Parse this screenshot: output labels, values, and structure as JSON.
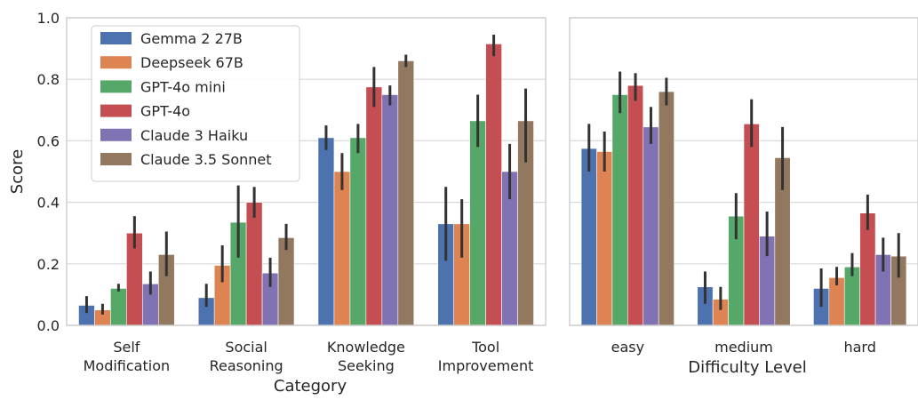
{
  "chart_data": [
    {
      "type": "bar",
      "panel": "left",
      "categories": [
        "Self\nModification",
        "Social\nReasoning",
        "Knowledge\nSeeking",
        "Tool\nImprovement"
      ],
      "xlabel": "Category",
      "ylabel": "Score",
      "ylim": [
        0,
        1.0
      ],
      "yticks": [
        "0.0",
        "0.2",
        "0.4",
        "0.6",
        "0.8",
        "1.0"
      ],
      "grid": true,
      "legend_position": "top-left",
      "series": [
        {
          "name": "Gemma 2 27B",
          "color": "#4c72b0",
          "values": [
            0.065,
            0.09,
            0.61,
            0.33
          ],
          "err_low": [
            0.04,
            0.06,
            0.57,
            0.21
          ],
          "err_high": [
            0.095,
            0.135,
            0.65,
            0.45
          ]
        },
        {
          "name": "Deepseek 67B",
          "color": "#dd8452",
          "values": [
            0.05,
            0.195,
            0.5,
            0.33
          ],
          "err_low": [
            0.035,
            0.14,
            0.44,
            0.22
          ],
          "err_high": [
            0.07,
            0.26,
            0.56,
            0.41
          ]
        },
        {
          "name": "GPT-4o mini",
          "color": "#55a868",
          "values": [
            0.12,
            0.335,
            0.61,
            0.665
          ],
          "err_low": [
            0.11,
            0.22,
            0.56,
            0.58
          ],
          "err_high": [
            0.135,
            0.455,
            0.655,
            0.75
          ]
        },
        {
          "name": "GPT-4o",
          "color": "#c44e52",
          "values": [
            0.3,
            0.4,
            0.775,
            0.915
          ],
          "err_low": [
            0.25,
            0.35,
            0.71,
            0.875
          ],
          "err_high": [
            0.355,
            0.45,
            0.84,
            0.945
          ]
        },
        {
          "name": "Claude 3 Haiku",
          "color": "#8172b3",
          "values": [
            0.135,
            0.17,
            0.75,
            0.5
          ],
          "err_low": [
            0.1,
            0.125,
            0.715,
            0.41
          ],
          "err_high": [
            0.175,
            0.22,
            0.78,
            0.59
          ]
        },
        {
          "name": "Claude 3.5 Sonnet",
          "color": "#937860",
          "values": [
            0.23,
            0.285,
            0.86,
            0.665
          ],
          "err_low": [
            0.16,
            0.245,
            0.84,
            0.53
          ],
          "err_high": [
            0.305,
            0.33,
            0.88,
            0.77
          ]
        }
      ]
    },
    {
      "type": "bar",
      "panel": "right",
      "categories": [
        "easy",
        "medium",
        "hard"
      ],
      "xlabel": "Difficulty Level",
      "ylabel": "",
      "ylim": [
        0,
        1.0
      ],
      "grid": true,
      "series": [
        {
          "name": "Gemma 2 27B",
          "color": "#4c72b0",
          "values": [
            0.575,
            0.125,
            0.12
          ],
          "err_low": [
            0.5,
            0.07,
            0.06
          ],
          "err_high": [
            0.655,
            0.175,
            0.185
          ]
        },
        {
          "name": "Deepseek 67B",
          "color": "#dd8452",
          "values": [
            0.565,
            0.085,
            0.155
          ],
          "err_low": [
            0.5,
            0.05,
            0.13
          ],
          "err_high": [
            0.63,
            0.125,
            0.19
          ]
        },
        {
          "name": "GPT-4o mini",
          "color": "#55a868",
          "values": [
            0.75,
            0.355,
            0.19
          ],
          "err_low": [
            0.69,
            0.28,
            0.16
          ],
          "err_high": [
            0.825,
            0.43,
            0.235
          ]
        },
        {
          "name": "GPT-4o",
          "color": "#c44e52",
          "values": [
            0.78,
            0.655,
            0.365
          ],
          "err_low": [
            0.73,
            0.58,
            0.31
          ],
          "err_high": [
            0.82,
            0.735,
            0.425
          ]
        },
        {
          "name": "Claude 3 Haiku",
          "color": "#8172b3",
          "values": [
            0.645,
            0.29,
            0.23
          ],
          "err_low": [
            0.59,
            0.225,
            0.175
          ],
          "err_high": [
            0.71,
            0.37,
            0.285
          ]
        },
        {
          "name": "Claude 3.5 Sonnet",
          "color": "#937860",
          "values": [
            0.76,
            0.545,
            0.225
          ],
          "err_low": [
            0.715,
            0.44,
            0.155
          ],
          "err_high": [
            0.805,
            0.645,
            0.3
          ]
        }
      ]
    }
  ]
}
